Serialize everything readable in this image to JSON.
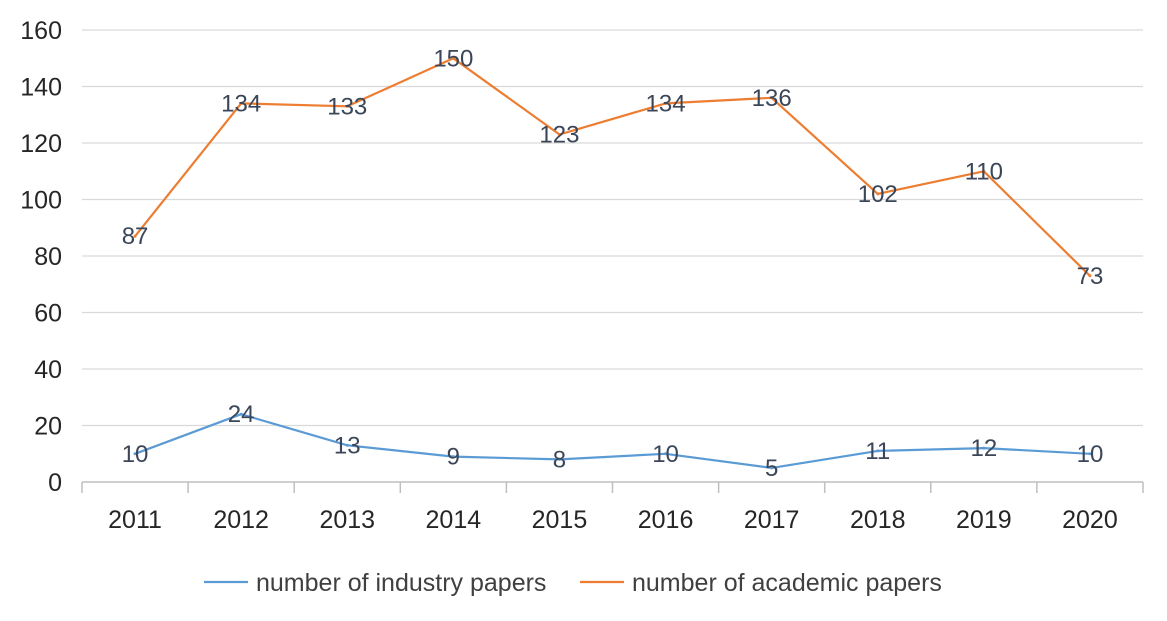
{
  "chart_data": {
    "type": "line",
    "title": "",
    "xlabel": "",
    "ylabel": "",
    "categories": [
      "2011",
      "2012",
      "2013",
      "2014",
      "2015",
      "2016",
      "2017",
      "2018",
      "2019",
      "2020"
    ],
    "ylim": [
      0,
      160
    ],
    "yticks": [
      0,
      20,
      40,
      60,
      80,
      100,
      120,
      140,
      160
    ],
    "grid": true,
    "legend_position": "bottom",
    "series": [
      {
        "name": "number of industry papers",
        "color": "#5b9bd5",
        "values": [
          10,
          24,
          13,
          9,
          8,
          10,
          5,
          11,
          12,
          10
        ]
      },
      {
        "name": "number of academic papers",
        "color": "#ed7d31",
        "values": [
          87,
          134,
          133,
          150,
          123,
          134,
          136,
          102,
          110,
          73
        ]
      }
    ]
  },
  "colors": {
    "grid": "#d9d9d9",
    "axis": "#bfbfbf",
    "text": "#262626",
    "data_label": "#3b4658"
  }
}
